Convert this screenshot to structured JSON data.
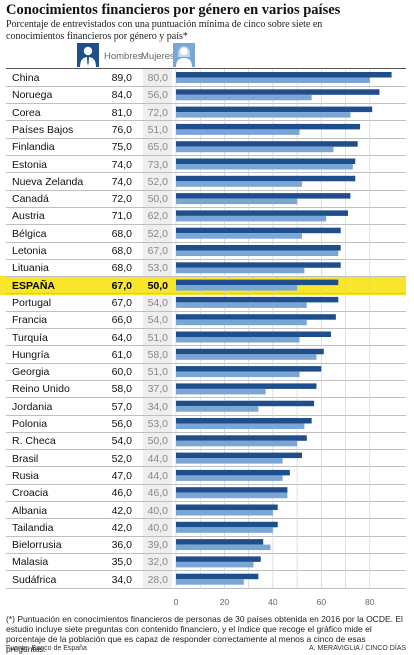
{
  "title": "Conocimientos financieros por género en varios países",
  "subtitle": "Porcentaje de entrevistados con una puntuación mínima de cinco sobre siete en conocimientos financieros por género y país*",
  "legend": {
    "hombres": "Hombres",
    "mujeres": "Mujeres"
  },
  "icons": {
    "hombres": "man-icon",
    "mujeres": "woman-icon"
  },
  "colors": {
    "hombres": "#1f4e8c",
    "mujeres": "#7aa6d6",
    "highlight": "#f7e62a",
    "grid": "#d0d0d0"
  },
  "highlighted_country": "ESPAÑA",
  "footnote": "(*) Puntuación en conocimientos financieros de personas de 30 países obtenida en 2016 por la OCDE. El estudio incluye siete preguntas con contenido financiero, y el índice que recoge el gráfico mide el porcentaje de la población que es capaz de responder correctamente al menos a cinco de esas preguntas.",
  "source": "Fuente: Banco de España",
  "credit": "A. MERAVIGLIA / CINCO DÍAS",
  "chart_data": {
    "type": "bar",
    "orientation": "horizontal",
    "title": "Conocimientos financieros por género en varios países",
    "xlim": [
      0,
      90
    ],
    "x_ticks": [
      "0",
      "20",
      "40",
      "60",
      "80"
    ],
    "grid": true,
    "categories": [
      "China",
      "Noruega",
      "Corea",
      "Países Bajos",
      "Finlandia",
      "Estonia",
      "Nueva Zelanda",
      "Canadá",
      "Austria",
      "Bélgica",
      "Letonia",
      "Lituania",
      "ESPAÑA",
      "Portugal",
      "Francia",
      "Turquía",
      "Hungría",
      "Georgia",
      "Reino Unido",
      "Jordania",
      "Polonia",
      "R. Checa",
      "Brasil",
      "Rusia",
      "Croacia",
      "Albania",
      "Tailandia",
      "Bielorrusia",
      "Malasia",
      "Sudáfrica"
    ],
    "series": [
      {
        "name": "Hombres",
        "values": [
          89.0,
          84.0,
          81.0,
          76.0,
          75.0,
          74.0,
          74.0,
          72.0,
          71.0,
          68.0,
          68.0,
          68.0,
          67.0,
          67.0,
          66.0,
          64.0,
          61.0,
          60.0,
          58.0,
          57.0,
          56.0,
          54.0,
          52.0,
          47.0,
          46.0,
          42.0,
          42.0,
          36.0,
          35.0,
          34.0
        ],
        "labels": [
          "89,0",
          "84,0",
          "81,0",
          "76,0",
          "75,0",
          "74,0",
          "74,0",
          "72,0",
          "71,0",
          "68,0",
          "68,0",
          "68,0",
          "67,0",
          "67,0",
          "66,0",
          "64,0",
          "61,0",
          "60,0",
          "58,0",
          "57,0",
          "56,0",
          "54,0",
          "52,0",
          "47,0",
          "46,0",
          "42,0",
          "42,0",
          "36,0",
          "35,0",
          "34,0"
        ]
      },
      {
        "name": "Mujeres",
        "values": [
          80.0,
          56.0,
          72.0,
          51.0,
          65.0,
          73.0,
          52.0,
          50.0,
          62.0,
          52.0,
          67.0,
          53.0,
          50.0,
          54.0,
          54.0,
          51.0,
          58.0,
          51.0,
          37.0,
          34.0,
          53.0,
          50.0,
          44.0,
          44.0,
          46.0,
          40.0,
          40.0,
          39.0,
          32.0,
          28.0
        ],
        "labels": [
          "80,0",
          "56,0",
          "72,0",
          "51,0",
          "65,0",
          "73,0",
          "52,0",
          "50,0",
          "62,0",
          "52,0",
          "67,0",
          "53,0",
          "50,0",
          "54,0",
          "54,0",
          "51,0",
          "58,0",
          "51,0",
          "37,0",
          "34,0",
          "53,0",
          "50,0",
          "44,0",
          "44,0",
          "46,0",
          "40,0",
          "40,0",
          "39,0",
          "32,0",
          "28,0"
        ]
      }
    ]
  }
}
